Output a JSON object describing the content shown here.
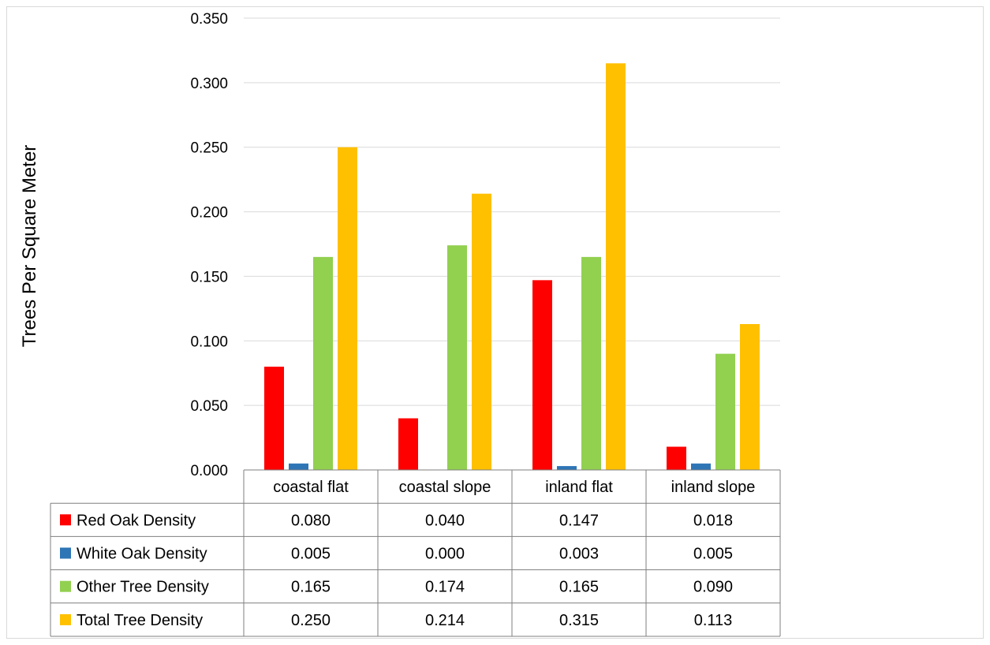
{
  "chart_data": {
    "type": "bar",
    "title": "",
    "xlabel": "",
    "ylabel": "Trees Per Square Meter",
    "ylim": [
      0,
      0.35
    ],
    "yticks": [
      "0.000",
      "0.050",
      "0.100",
      "0.150",
      "0.200",
      "0.250",
      "0.300",
      "0.350"
    ],
    "grid": true,
    "legend": "data table",
    "categories": [
      "coastal flat",
      "coastal slope",
      "inland flat",
      "inland slope"
    ],
    "series": [
      {
        "name": "Red Oak Density",
        "color": "#ff0000",
        "values": [
          0.08,
          0.04,
          0.147,
          0.018
        ],
        "labels": [
          "0.080",
          "0.040",
          "0.147",
          "0.018"
        ]
      },
      {
        "name": "White Oak Density",
        "color": "#2e75b6",
        "values": [
          0.005,
          0.0,
          0.003,
          0.005
        ],
        "labels": [
          "0.005",
          "0.000",
          "0.003",
          "0.005"
        ]
      },
      {
        "name": "Other Tree Density",
        "color": "#92d050",
        "values": [
          0.165,
          0.174,
          0.165,
          0.09
        ],
        "labels": [
          "0.165",
          "0.174",
          "0.165",
          "0.090"
        ]
      },
      {
        "name": "Total Tree Density",
        "color": "#ffc000",
        "values": [
          0.25,
          0.214,
          0.315,
          0.113
        ],
        "labels": [
          "0.250",
          "0.214",
          "0.315",
          "0.113"
        ]
      }
    ]
  }
}
